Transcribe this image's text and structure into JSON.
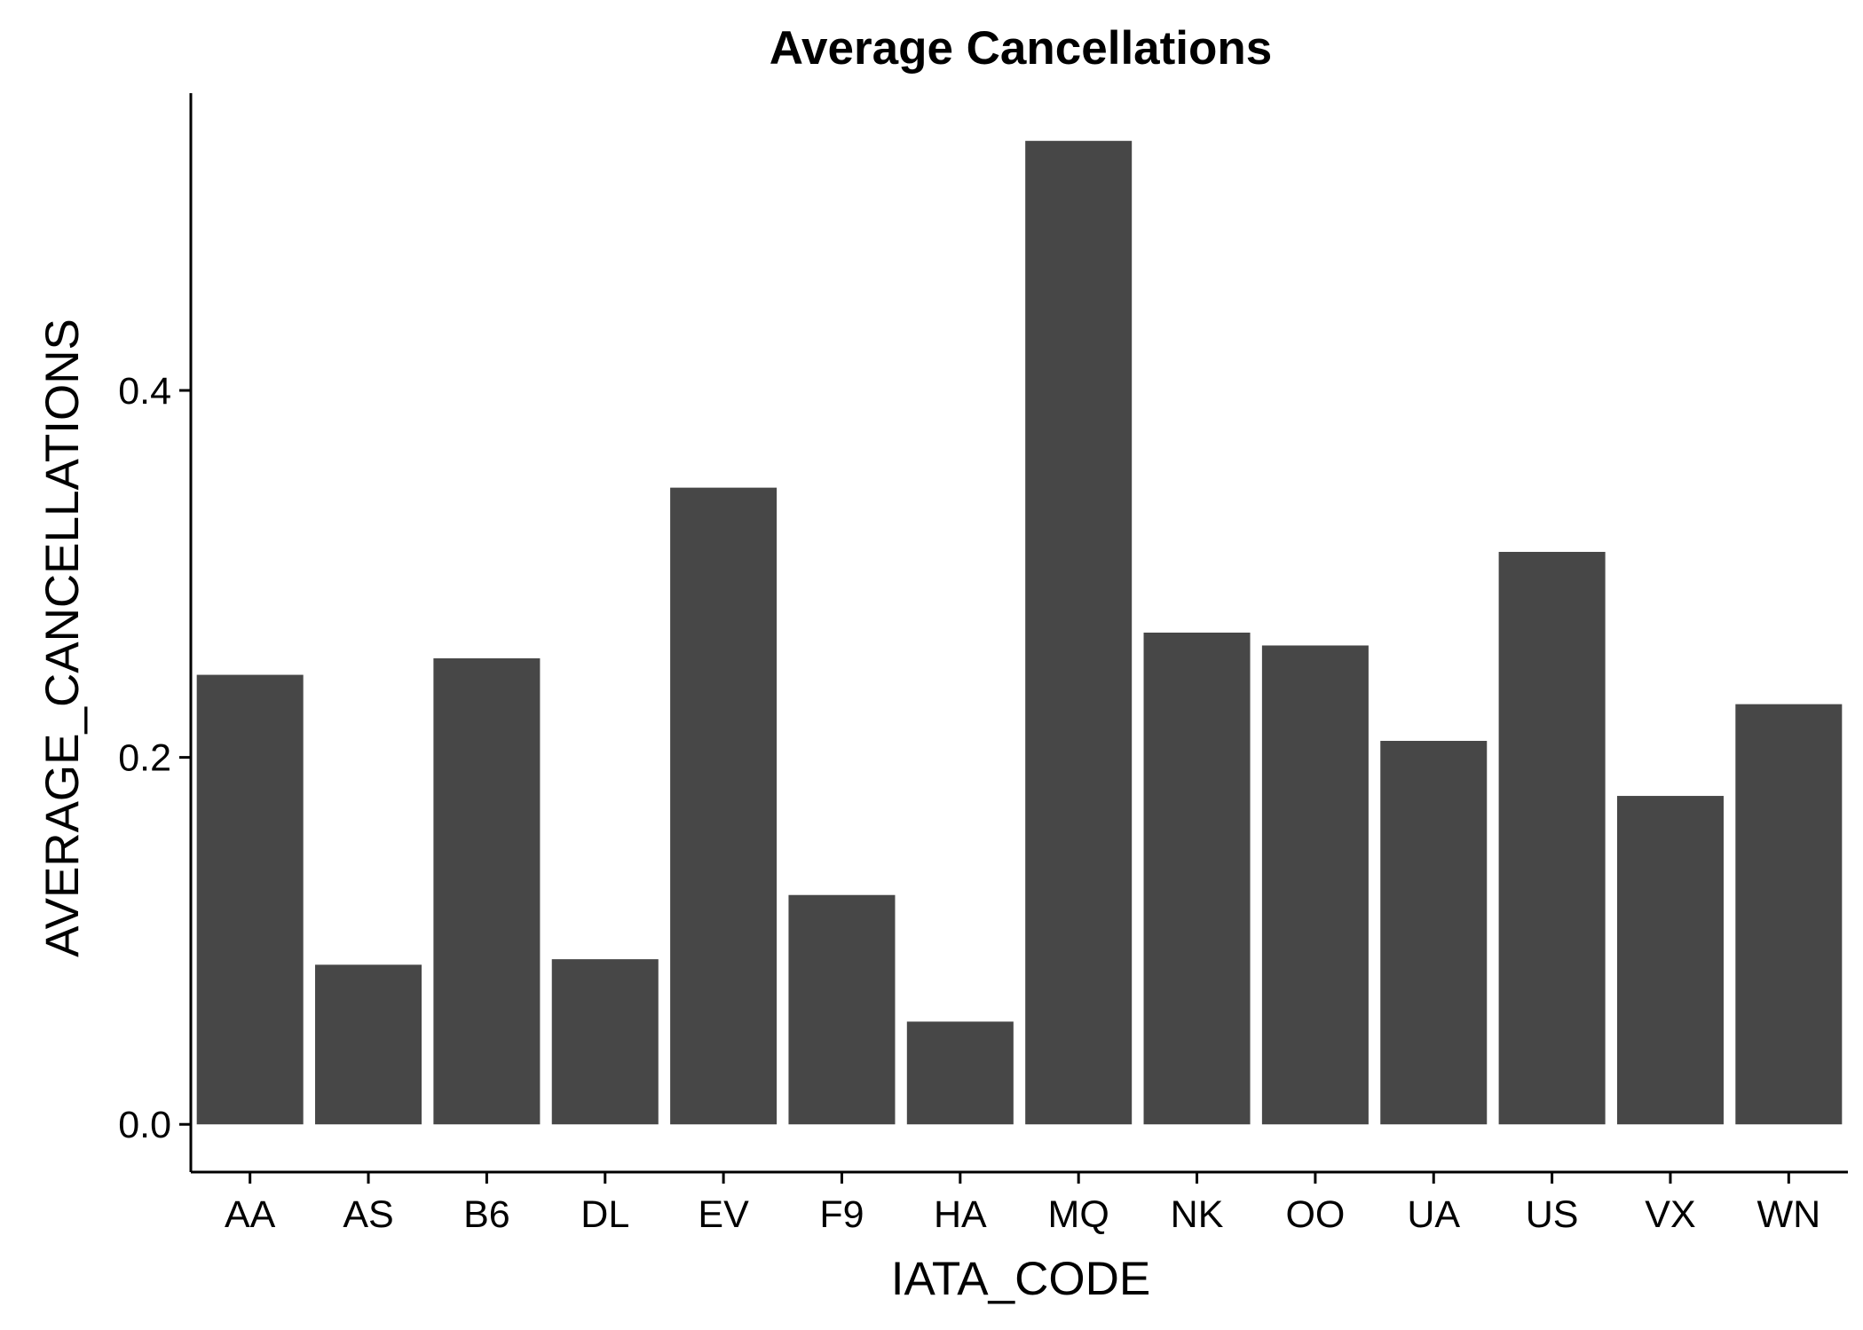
{
  "chart_data": {
    "type": "bar",
    "title": "Average Cancellations",
    "xlabel": "IATA_CODE",
    "ylabel": "AVERAGE_CANCELLATIONS",
    "categories": [
      "AA",
      "AS",
      "B6",
      "DL",
      "EV",
      "F9",
      "HA",
      "MQ",
      "NK",
      "OO",
      "UA",
      "US",
      "VX",
      "WN"
    ],
    "values": [
      0.245,
      0.087,
      0.254,
      0.09,
      0.347,
      0.125,
      0.056,
      0.536,
      0.268,
      0.261,
      0.209,
      0.312,
      0.179,
      0.229
    ],
    "yticks": [
      0.0,
      0.2,
      0.4
    ],
    "ytick_labels": [
      "0.0",
      "0.2",
      "0.4"
    ],
    "ylim": [
      -0.026,
      0.562
    ],
    "bar_color": "#474747",
    "grid": false,
    "legend": "none"
  }
}
